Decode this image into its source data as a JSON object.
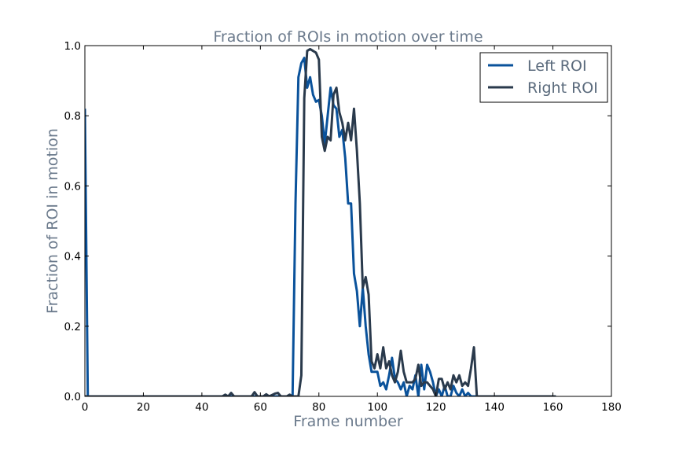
{
  "chart_data": {
    "type": "line",
    "title": "Fraction of ROIs in motion over time",
    "xlabel": "Frame number",
    "ylabel": "Fraction of ROI in motion",
    "xlim": [
      0,
      180
    ],
    "ylim": [
      0,
      1.0
    ],
    "x_ticks": [
      "0",
      "20",
      "40",
      "60",
      "80",
      "100",
      "120",
      "140",
      "160",
      "180"
    ],
    "y_ticks": [
      "0.0",
      "0.2",
      "0.4",
      "0.6",
      "0.8",
      "1.0"
    ],
    "grid": false,
    "legend_position": "top-right",
    "series": [
      {
        "name": "Left ROI",
        "color": "#0a529b",
        "points": [
          [
            0,
            0.82
          ],
          [
            1,
            0
          ],
          [
            47,
            0
          ],
          [
            50,
            0
          ],
          [
            58,
            0
          ],
          [
            60,
            0
          ],
          [
            64,
            0
          ],
          [
            68,
            0
          ],
          [
            70,
            0
          ],
          [
            71,
            0
          ],
          [
            72,
            0.55
          ],
          [
            73,
            0.91
          ],
          [
            74,
            0.95
          ],
          [
            75,
            0.965
          ],
          [
            76,
            0.88
          ],
          [
            77,
            0.91
          ],
          [
            78,
            0.86
          ],
          [
            79,
            0.84
          ],
          [
            80,
            0.845
          ],
          [
            81,
            0.8
          ],
          [
            82,
            0.72
          ],
          [
            83,
            0.8
          ],
          [
            84,
            0.88
          ],
          [
            85,
            0.83
          ],
          [
            86,
            0.82
          ],
          [
            87,
            0.74
          ],
          [
            88,
            0.76
          ],
          [
            89,
            0.68
          ],
          [
            90,
            0.55
          ],
          [
            91,
            0.55
          ],
          [
            92,
            0.35
          ],
          [
            93,
            0.3
          ],
          [
            94,
            0.2
          ],
          [
            95,
            0.31
          ],
          [
            96,
            0.2
          ],
          [
            97,
            0.12
          ],
          [
            98,
            0.07
          ],
          [
            100,
            0.07
          ],
          [
            101,
            0.03
          ],
          [
            102,
            0.04
          ],
          [
            103,
            0.02
          ],
          [
            104,
            0.06
          ],
          [
            105,
            0.11
          ],
          [
            106,
            0.05
          ],
          [
            107,
            0.04
          ],
          [
            108,
            0.02
          ],
          [
            109,
            0.04
          ],
          [
            110,
            0
          ],
          [
            111,
            0.03
          ],
          [
            112,
            0.02
          ],
          [
            113,
            0.06
          ],
          [
            114,
            0
          ],
          [
            115,
            0.09
          ],
          [
            116,
            0.02
          ],
          [
            117,
            0.09
          ],
          [
            118,
            0.07
          ],
          [
            119,
            0.04
          ],
          [
            120,
            0
          ],
          [
            121,
            0.02
          ],
          [
            122,
            0
          ],
          [
            123,
            0.03
          ],
          [
            124,
            0
          ],
          [
            125,
            0
          ],
          [
            126,
            0.03
          ],
          [
            127,
            0.01
          ],
          [
            128,
            0
          ],
          [
            129,
            0.02
          ],
          [
            130,
            0
          ],
          [
            131,
            0.01
          ],
          [
            132,
            0
          ],
          [
            133,
            0
          ],
          [
            161,
            0
          ]
        ]
      },
      {
        "name": "Right ROI",
        "color": "#2a3a4c",
        "points": [
          [
            0,
            0
          ],
          [
            47,
            0
          ],
          [
            48,
            0.005
          ],
          [
            49,
            0
          ],
          [
            50,
            0.01
          ],
          [
            51,
            0
          ],
          [
            57,
            0
          ],
          [
            58,
            0.012
          ],
          [
            59,
            0
          ],
          [
            61,
            0
          ],
          [
            62,
            0.006
          ],
          [
            63,
            0
          ],
          [
            65,
            0.008
          ],
          [
            66,
            0.01
          ],
          [
            67,
            0
          ],
          [
            69,
            0
          ],
          [
            70,
            0.005
          ],
          [
            71,
            0
          ],
          [
            73,
            0
          ],
          [
            74,
            0.06
          ],
          [
            75,
            0.85
          ],
          [
            76,
            0.985
          ],
          [
            77,
            0.99
          ],
          [
            78,
            0.985
          ],
          [
            79,
            0.98
          ],
          [
            80,
            0.96
          ],
          [
            81,
            0.74
          ],
          [
            82,
            0.7
          ],
          [
            83,
            0.74
          ],
          [
            84,
            0.73
          ],
          [
            85,
            0.86
          ],
          [
            86,
            0.88
          ],
          [
            87,
            0.81
          ],
          [
            88,
            0.78
          ],
          [
            89,
            0.73
          ],
          [
            90,
            0.78
          ],
          [
            91,
            0.73
          ],
          [
            92,
            0.82
          ],
          [
            93,
            0.7
          ],
          [
            94,
            0.55
          ],
          [
            95,
            0.31
          ],
          [
            96,
            0.34
          ],
          [
            97,
            0.29
          ],
          [
            98,
            0.1
          ],
          [
            99,
            0.08
          ],
          [
            100,
            0.12
          ],
          [
            101,
            0.08
          ],
          [
            102,
            0.14
          ],
          [
            103,
            0.08
          ],
          [
            104,
            0.1
          ],
          [
            105,
            0.06
          ],
          [
            106,
            0.04
          ],
          [
            107,
            0.07
          ],
          [
            108,
            0.13
          ],
          [
            109,
            0.07
          ],
          [
            110,
            0.04
          ],
          [
            111,
            0.04
          ],
          [
            112,
            0.04
          ],
          [
            113,
            0.05
          ],
          [
            114,
            0.09
          ],
          [
            115,
            0.03
          ],
          [
            116,
            0.04
          ],
          [
            117,
            0.04
          ],
          [
            118,
            0.03
          ],
          [
            119,
            0.02
          ],
          [
            120,
            0
          ],
          [
            121,
            0.05
          ],
          [
            122,
            0.05
          ],
          [
            123,
            0.02
          ],
          [
            124,
            0.04
          ],
          [
            125,
            0.02
          ],
          [
            126,
            0.06
          ],
          [
            127,
            0.04
          ],
          [
            128,
            0.06
          ],
          [
            129,
            0.03
          ],
          [
            130,
            0.04
          ],
          [
            131,
            0.03
          ],
          [
            132,
            0.08
          ],
          [
            133,
            0.14
          ],
          [
            134,
            0
          ],
          [
            161,
            0
          ]
        ]
      }
    ]
  }
}
